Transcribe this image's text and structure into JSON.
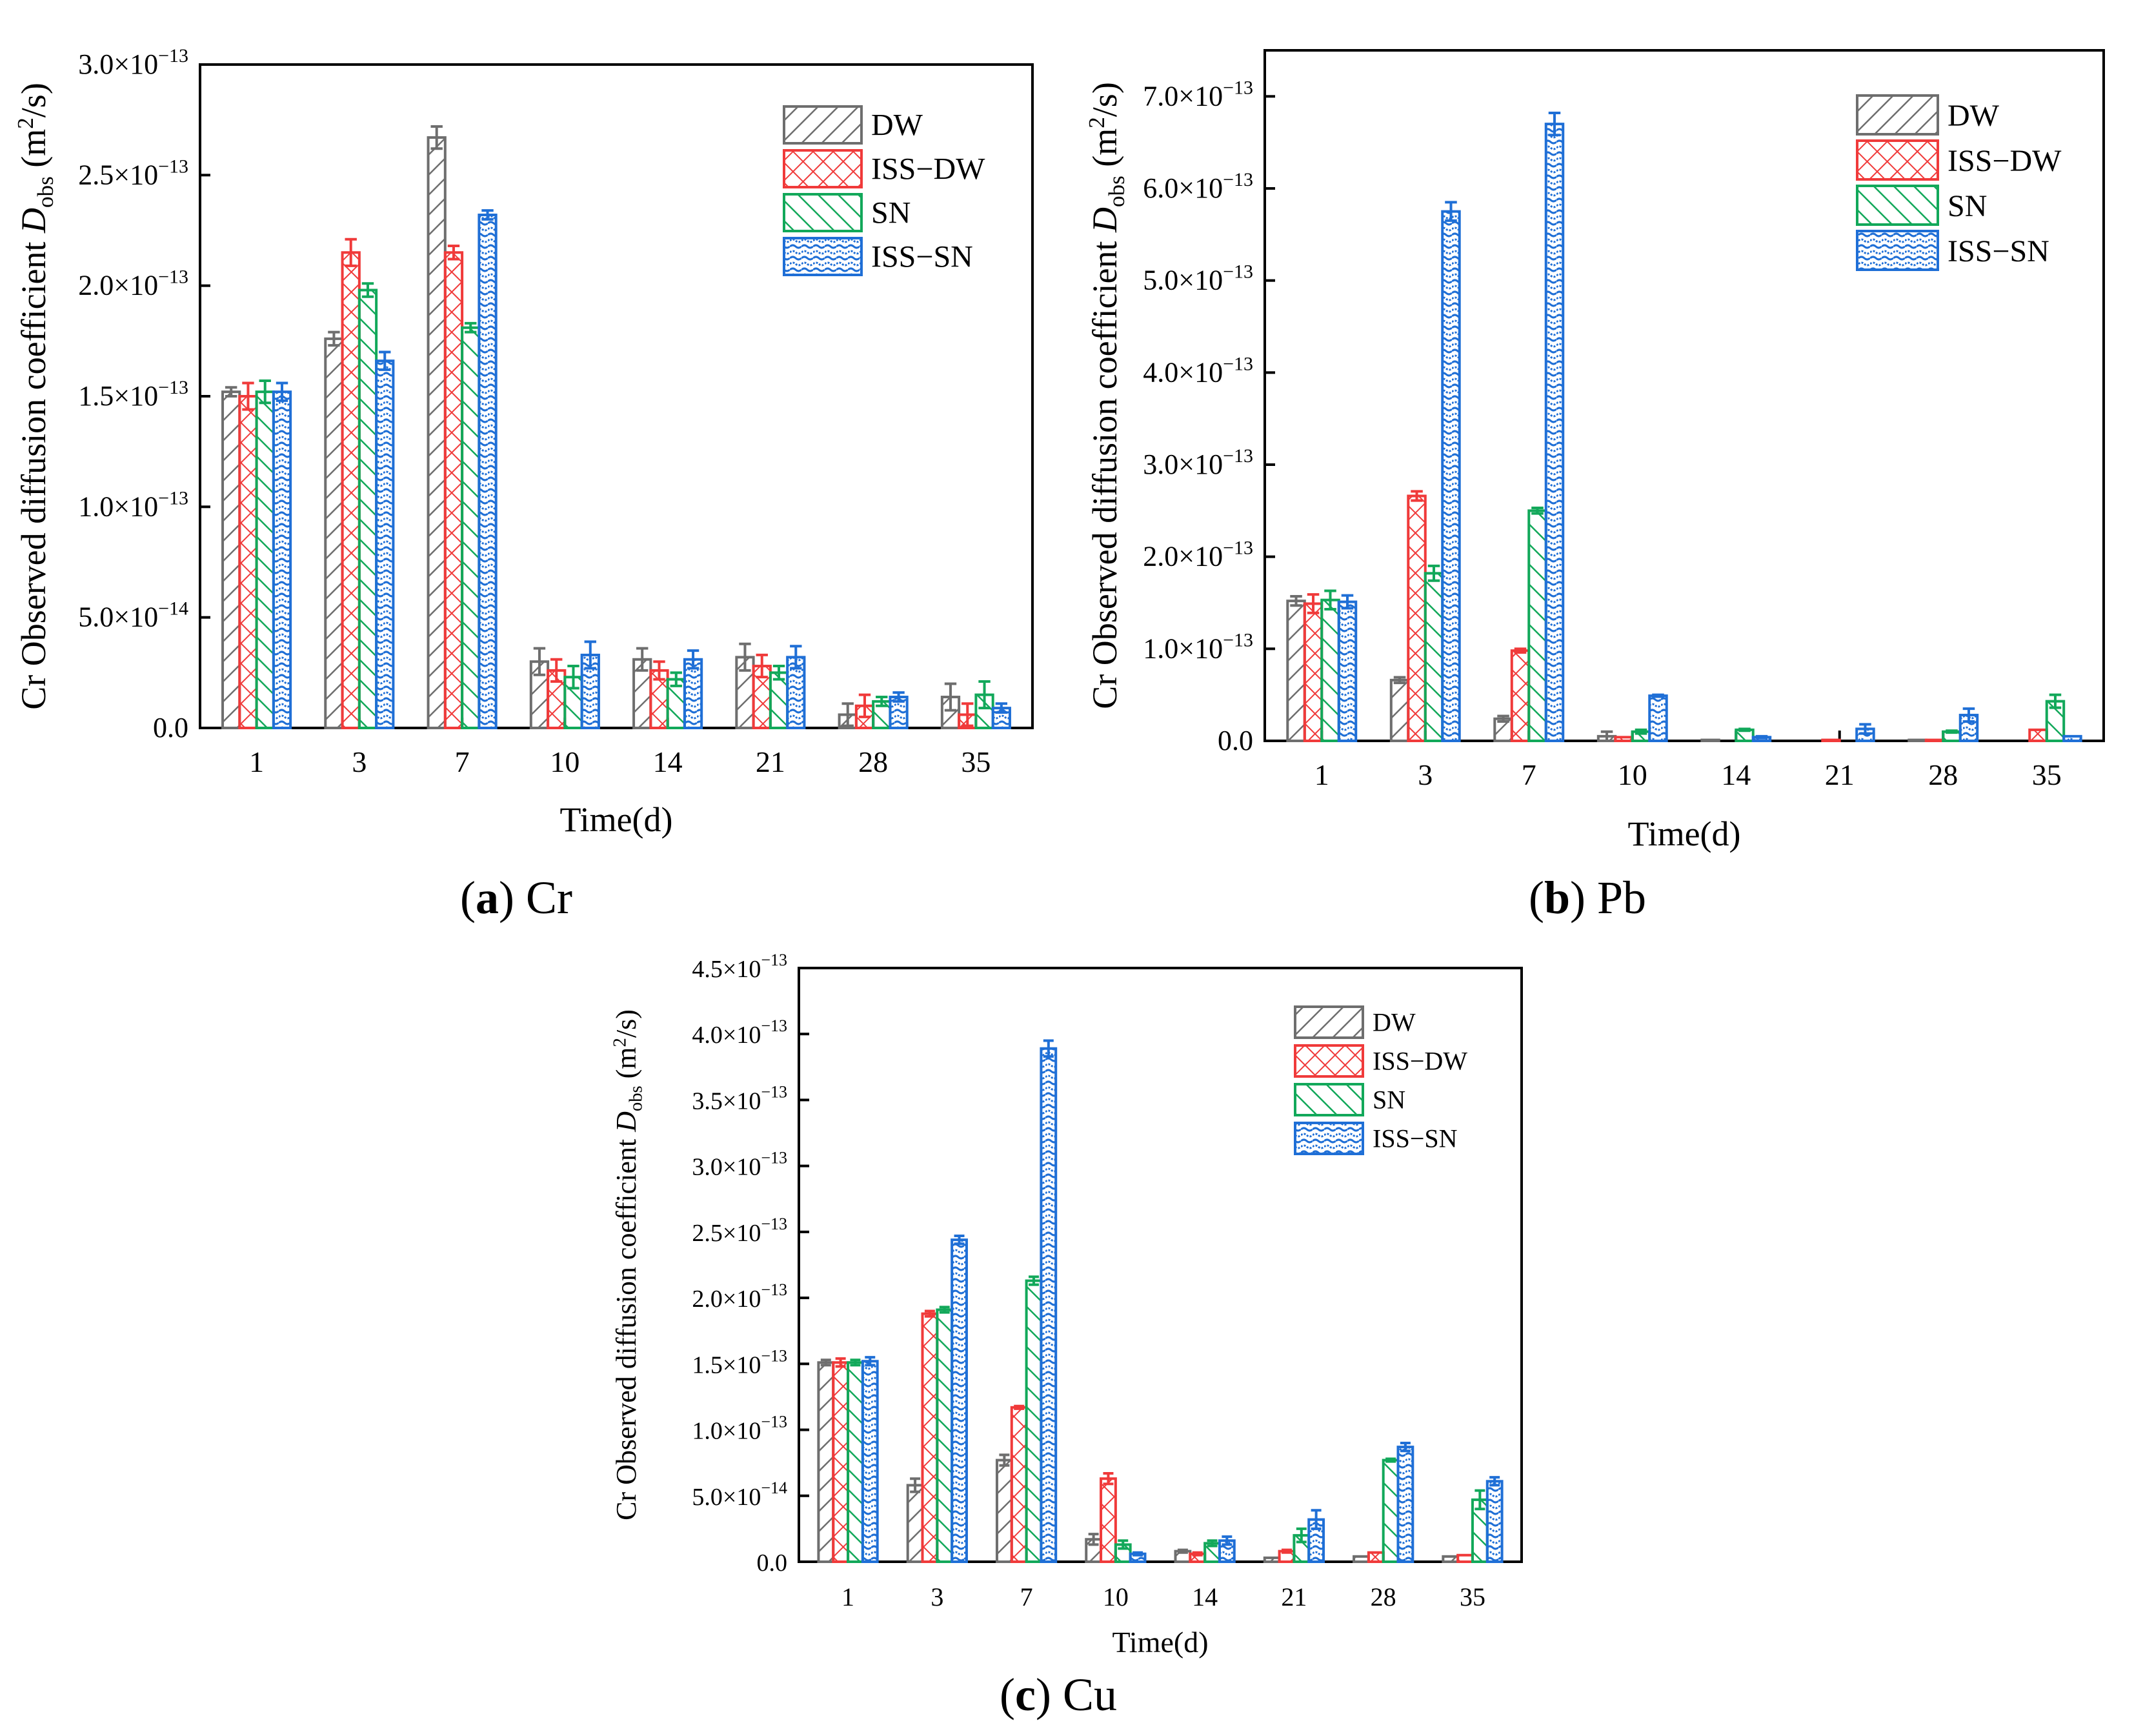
{
  "colors": {
    "DW": "#6e6e6e",
    "ISS-DW": "#f03a3a",
    "SN": "#12a85a",
    "ISS-SN": "#1f6fd6"
  },
  "chart_data": [
    {
      "type": "bar",
      "panel_label": "a",
      "caption": "Cr",
      "y_label_prefix": "Cr Observed diffusion coefficient ",
      "y_label_symbol": "D",
      "y_label_subscript": "obs",
      "y_label_unit_open": " (m",
      "y_label_unit_sup": "2",
      "y_label_unit_close": "/s)",
      "xlabel": "Time(d)",
      "categories": [
        "1",
        "3",
        "7",
        "10",
        "14",
        "21",
        "28",
        "35"
      ],
      "ylim": [
        0,
        3e-13
      ],
      "yticks": [
        {
          "value": 0,
          "mant": "0.0",
          "exp": ""
        },
        {
          "value": 5e-14,
          "mant": "5.0×10",
          "exp": "−14"
        },
        {
          "value": 1e-13,
          "mant": "1.0×10",
          "exp": "−13"
        },
        {
          "value": 1.5e-13,
          "mant": "1.5×10",
          "exp": "−13"
        },
        {
          "value": 2e-13,
          "mant": "2.0×10",
          "exp": "−13"
        },
        {
          "value": 2.5e-13,
          "mant": "2.5×10",
          "exp": "−13"
        },
        {
          "value": 3e-13,
          "mant": "3.0×10",
          "exp": "−13"
        }
      ],
      "legend_position": "top-right",
      "series": [
        {
          "name": "DW",
          "values": [
            1.52e-13,
            1.76e-13,
            2.67e-13,
            3e-14,
            3.1e-14,
            3.2e-14,
            6e-15,
            1.4e-14
          ],
          "errors": [
            2e-15,
            3e-15,
            5e-15,
            6e-15,
            5e-15,
            6e-15,
            5e-15,
            6e-15
          ]
        },
        {
          "name": "ISS−DW",
          "values": [
            1.5e-13,
            2.15e-13,
            2.15e-13,
            2.6e-14,
            2.6e-14,
            2.8e-14,
            1e-14,
            6e-15
          ],
          "errors": [
            6e-15,
            6e-15,
            3e-15,
            5e-15,
            4e-15,
            5e-15,
            5e-15,
            5e-15
          ]
        },
        {
          "name": "SN",
          "values": [
            1.52e-13,
            1.98e-13,
            1.81e-13,
            2.3e-14,
            2.2e-14,
            2.5e-14,
            1.2e-14,
            1.5e-14
          ],
          "errors": [
            5e-15,
            3e-15,
            2e-15,
            5e-15,
            3e-15,
            3e-15,
            2e-15,
            6e-15
          ]
        },
        {
          "name": "ISS−SN",
          "values": [
            1.52e-13,
            1.66e-13,
            2.32e-13,
            3.3e-14,
            3.1e-14,
            3.2e-14,
            1.4e-14,
            9e-15
          ],
          "errors": [
            4e-15,
            4e-15,
            2e-15,
            6e-15,
            4e-15,
            5e-15,
            2e-15,
            2e-15
          ]
        }
      ]
    },
    {
      "type": "bar",
      "panel_label": "b",
      "caption": "Pb",
      "y_label_prefix": "Cr Observed diffusion coefficient ",
      "y_label_symbol": "D",
      "y_label_subscript": "obs",
      "y_label_unit_open": " (m",
      "y_label_unit_sup": "2",
      "y_label_unit_close": "/s)",
      "xlabel": "Time(d)",
      "categories": [
        "1",
        "3",
        "7",
        "10",
        "14",
        "21",
        "28",
        "35"
      ],
      "ylim": [
        0,
        7.5e-13
      ],
      "yticks": [
        {
          "value": 0,
          "mant": "0.0",
          "exp": ""
        },
        {
          "value": 1e-13,
          "mant": "1.0×10",
          "exp": "−13"
        },
        {
          "value": 2e-13,
          "mant": "2.0×10",
          "exp": "−13"
        },
        {
          "value": 3e-13,
          "mant": "3.0×10",
          "exp": "−13"
        },
        {
          "value": 4e-13,
          "mant": "4.0×10",
          "exp": "−13"
        },
        {
          "value": 5e-13,
          "mant": "5.0×10",
          "exp": "−13"
        },
        {
          "value": 6e-13,
          "mant": "6.0×10",
          "exp": "−13"
        },
        {
          "value": 7e-13,
          "mant": "7.0×10",
          "exp": "−13"
        }
      ],
      "legend_position": "top-right",
      "series": [
        {
          "name": "DW",
          "values": [
            1.52e-13,
            6.6e-14,
            2.4e-14,
            5e-15,
            1e-15,
            0,
            1e-15,
            0
          ],
          "errors": [
            5e-15,
            3e-15,
            3e-15,
            5e-15,
            0,
            0,
            0,
            0
          ]
        },
        {
          "name": "ISS−DW",
          "values": [
            1.49e-13,
            2.66e-13,
            9.8e-14,
            4e-15,
            0,
            1e-15,
            1e-15,
            1.2e-14
          ],
          "errors": [
            1e-14,
            5e-15,
            2e-15,
            0,
            0,
            0,
            0,
            0
          ]
        },
        {
          "name": "SN",
          "values": [
            1.53e-13,
            1.82e-13,
            2.5e-13,
            1e-14,
            1.2e-14,
            0,
            1e-14,
            4.3e-14
          ],
          "errors": [
            1e-14,
            8e-15,
            3e-15,
            2e-15,
            1e-15,
            0,
            1e-15,
            7e-15
          ]
        },
        {
          "name": "ISS−SN",
          "values": [
            1.51e-13,
            5.75e-13,
            6.7e-13,
            4.9e-14,
            4e-15,
            1.3e-14,
            2.8e-14,
            5e-15
          ],
          "errors": [
            7e-15,
            1e-14,
            1.2e-14,
            1e-15,
            1e-15,
            5e-15,
            7e-15,
            0
          ]
        }
      ]
    },
    {
      "type": "bar",
      "panel_label": "c",
      "caption": "Cu",
      "y_label_prefix": "Cr Observed diffusion coefficient ",
      "y_label_symbol": "D",
      "y_label_subscript": "obs",
      "y_label_unit_open": " (m",
      "y_label_unit_sup": "2",
      "y_label_unit_close": "/s)",
      "xlabel": "Time(d)",
      "categories": [
        "1",
        "3",
        "7",
        "10",
        "14",
        "21",
        "28",
        "35"
      ],
      "ylim": [
        0,
        4.5e-13
      ],
      "yticks": [
        {
          "value": 0,
          "mant": "0.0",
          "exp": ""
        },
        {
          "value": 5e-14,
          "mant": "5.0×10",
          "exp": "−14"
        },
        {
          "value": 1e-13,
          "mant": "1.0×10",
          "exp": "−13"
        },
        {
          "value": 1.5e-13,
          "mant": "1.5×10",
          "exp": "−13"
        },
        {
          "value": 2e-13,
          "mant": "2.0×10",
          "exp": "−13"
        },
        {
          "value": 2.5e-13,
          "mant": "2.5×10",
          "exp": "−13"
        },
        {
          "value": 3e-13,
          "mant": "3.0×10",
          "exp": "−13"
        },
        {
          "value": 3.5e-13,
          "mant": "3.5×10",
          "exp": "−13"
        },
        {
          "value": 4e-13,
          "mant": "4.0×10",
          "exp": "−13"
        },
        {
          "value": 4.5e-13,
          "mant": "4.5×10",
          "exp": "−13"
        }
      ],
      "legend_position": "top-right",
      "series": [
        {
          "name": "DW",
          "values": [
            1.51e-13,
            5.8e-14,
            7.7e-14,
            1.7e-14,
            8e-15,
            3e-15,
            4e-15,
            4e-15
          ],
          "errors": [
            2e-15,
            5e-15,
            4e-15,
            4e-15,
            1e-15,
            0,
            0,
            0
          ]
        },
        {
          "name": "ISS−DW",
          "values": [
            1.51e-13,
            1.88e-13,
            1.17e-13,
            6.3e-14,
            6e-15,
            8e-15,
            7e-15,
            5e-15
          ],
          "errors": [
            3e-15,
            2e-15,
            1e-15,
            4e-15,
            1e-15,
            1e-15,
            0,
            0
          ]
        },
        {
          "name": "SN",
          "values": [
            1.51e-13,
            1.91e-13,
            2.13e-13,
            1.3e-14,
            1.4e-14,
            2e-14,
            7.7e-14,
            4.7e-14
          ],
          "errors": [
            2e-15,
            2e-15,
            3e-15,
            3e-15,
            2e-15,
            5e-15,
            1e-15,
            7e-15
          ]
        },
        {
          "name": "ISS−SN",
          "values": [
            1.52e-13,
            2.44e-13,
            3.89e-13,
            6e-15,
            1.6e-14,
            3.2e-14,
            8.7e-14,
            6.1e-14
          ],
          "errors": [
            3e-15,
            3e-15,
            6e-15,
            1e-15,
            3e-15,
            7e-15,
            3e-15,
            3e-15
          ]
        }
      ]
    }
  ]
}
